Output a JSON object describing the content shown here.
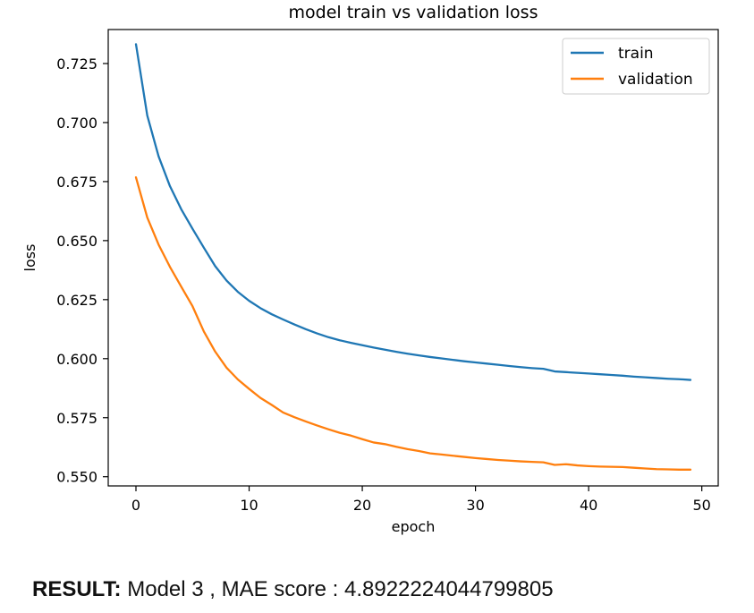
{
  "result": {
    "label": "RESULT:",
    "text": "Model 3 , MAE score : 4.8922224044799805"
  },
  "chart_data": {
    "type": "line",
    "title": "model train vs validation loss",
    "xlabel": "epoch",
    "ylabel": "loss",
    "xlim": [
      -2.45,
      51.45
    ],
    "ylim": [
      0.5461,
      0.7394
    ],
    "xticks": [
      0,
      10,
      20,
      30,
      40,
      50
    ],
    "xtick_labels": [
      "0",
      "10",
      "20",
      "30",
      "40",
      "50"
    ],
    "yticks": [
      0.55,
      0.575,
      0.6,
      0.625,
      0.65,
      0.675,
      0.7,
      0.725
    ],
    "ytick_labels": [
      "0.550",
      "0.575",
      "0.600",
      "0.625",
      "0.650",
      "0.675",
      "0.700",
      "0.725"
    ],
    "grid": false,
    "legend_position": "upper right",
    "x": [
      0,
      1,
      2,
      3,
      4,
      5,
      6,
      7,
      8,
      9,
      10,
      11,
      12,
      13,
      14,
      15,
      16,
      17,
      18,
      19,
      20,
      21,
      22,
      23,
      24,
      25,
      26,
      27,
      28,
      29,
      30,
      31,
      32,
      33,
      34,
      35,
      36,
      37,
      38,
      39,
      40,
      41,
      42,
      43,
      44,
      45,
      46,
      47,
      48,
      49
    ],
    "series": [
      {
        "name": "train",
        "color": "#1f77b4",
        "values": [
          0.7332,
          0.703,
          0.6857,
          0.6731,
          0.6633,
          0.655,
          0.647,
          0.6392,
          0.6331,
          0.6283,
          0.6245,
          0.6214,
          0.6188,
          0.6166,
          0.6145,
          0.6125,
          0.6107,
          0.6091,
          0.6078,
          0.6067,
          0.6057,
          0.6047,
          0.6038,
          0.6029,
          0.6021,
          0.6014,
          0.6007,
          0.6001,
          0.5995,
          0.5989,
          0.5984,
          0.5979,
          0.5974,
          0.5969,
          0.5964,
          0.596,
          0.5957,
          0.5946,
          0.5943,
          0.594,
          0.5937,
          0.5934,
          0.5931,
          0.5928,
          0.5924,
          0.5921,
          0.5918,
          0.5915,
          0.5913,
          0.591
        ]
      },
      {
        "name": "validation",
        "color": "#ff7f0e",
        "values": [
          0.6768,
          0.6598,
          0.6483,
          0.6389,
          0.6305,
          0.6222,
          0.6115,
          0.603,
          0.5962,
          0.5912,
          0.5872,
          0.5834,
          0.5804,
          0.5772,
          0.5752,
          0.5734,
          0.5717,
          0.5701,
          0.5686,
          0.5674,
          0.5659,
          0.5645,
          0.5638,
          0.5627,
          0.5617,
          0.5609,
          0.5599,
          0.5594,
          0.5589,
          0.5584,
          0.5579,
          0.5575,
          0.5571,
          0.5568,
          0.5565,
          0.5563,
          0.5561,
          0.555,
          0.5553,
          0.5548,
          0.5545,
          0.5543,
          0.5542,
          0.5541,
          0.5538,
          0.5535,
          0.5532,
          0.5531,
          0.553,
          0.553
        ]
      }
    ]
  }
}
